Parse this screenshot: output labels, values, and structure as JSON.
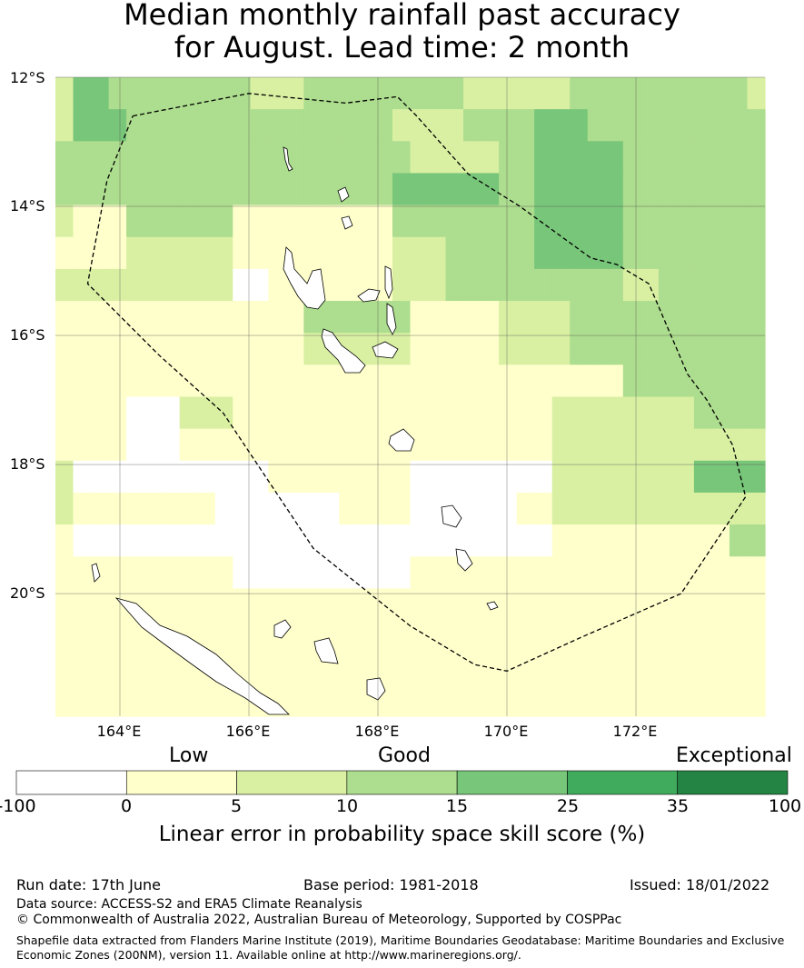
{
  "title_line1": "Median monthly rainfall past accuracy",
  "title_line2": "for August. Lead time: 2 month",
  "map": {
    "lat_labels": [
      "12°S",
      "14°S",
      "16°S",
      "18°S",
      "20°S"
    ],
    "lon_labels": [
      "164°E",
      "166°E",
      "168°E",
      "170°E",
      "172°E"
    ],
    "lon_range": [
      163.0,
      174.0
    ],
    "lat_range": [
      -21.9,
      -12.0
    ],
    "cell_size_deg": 0.833,
    "grid": [
      [
        2,
        4,
        4,
        3,
        3,
        3,
        3,
        3,
        3,
        3,
        3,
        2,
        2,
        2,
        3,
        3,
        3,
        3,
        3,
        3,
        3,
        3,
        3,
        2,
        2,
        2,
        2,
        2,
        2,
        3,
        3,
        3,
        3,
        3,
        3,
        3,
        3,
        3,
        3,
        2
      ],
      [
        2,
        4,
        4,
        4,
        3,
        3,
        3,
        3,
        3,
        3,
        3,
        3,
        3,
        3,
        3,
        3,
        3,
        3,
        3,
        2,
        2,
        2,
        2,
        3,
        3,
        3,
        3,
        4,
        4,
        4,
        3,
        3,
        3,
        3,
        3,
        3,
        3,
        3,
        3,
        3
      ],
      [
        3,
        3,
        3,
        3,
        3,
        3,
        3,
        3,
        3,
        3,
        3,
        3,
        3,
        3,
        3,
        3,
        3,
        3,
        3,
        3,
        2,
        2,
        2,
        2,
        2,
        3,
        3,
        4,
        4,
        4,
        4,
        4,
        3,
        3,
        3,
        3,
        3,
        3,
        3,
        3
      ],
      [
        3,
        3,
        3,
        3,
        3,
        3,
        3,
        3,
        3,
        3,
        3,
        3,
        3,
        3,
        3,
        3,
        3,
        3,
        3,
        4,
        4,
        4,
        4,
        4,
        4,
        3,
        3,
        4,
        4,
        4,
        4,
        4,
        3,
        3,
        3,
        3,
        3,
        3,
        3,
        3
      ],
      [
        2,
        1,
        1,
        1,
        3,
        3,
        3,
        3,
        3,
        3,
        1,
        1,
        1,
        1,
        1,
        1,
        1,
        1,
        1,
        3,
        3,
        3,
        3,
        3,
        3,
        3,
        3,
        4,
        4,
        4,
        4,
        4,
        3,
        3,
        3,
        3,
        3,
        3,
        3,
        3
      ],
      [
        1,
        1,
        1,
        1,
        2,
        2,
        2,
        2,
        2,
        2,
        1,
        1,
        1,
        1,
        1,
        1,
        1,
        1,
        1,
        2,
        2,
        2,
        3,
        3,
        3,
        3,
        3,
        4,
        4,
        4,
        4,
        4,
        3,
        3,
        3,
        3,
        3,
        3,
        3,
        3
      ],
      [
        2,
        2,
        2,
        2,
        2,
        2,
        2,
        2,
        2,
        2,
        0,
        0,
        1,
        1,
        1,
        1,
        1,
        1,
        1,
        2,
        2,
        2,
        3,
        3,
        3,
        3,
        3,
        3,
        3,
        3,
        3,
        3,
        2,
        2,
        3,
        3,
        3,
        3,
        3,
        3
      ],
      [
        1,
        1,
        1,
        1,
        1,
        1,
        1,
        1,
        1,
        1,
        1,
        1,
        1,
        1,
        3,
        3,
        3,
        3,
        3,
        3,
        1,
        1,
        1,
        1,
        1,
        2,
        2,
        2,
        2,
        3,
        3,
        3,
        3,
        3,
        3,
        3,
        3,
        3,
        3,
        3
      ],
      [
        1,
        1,
        1,
        1,
        1,
        1,
        1,
        1,
        1,
        1,
        1,
        1,
        1,
        1,
        2,
        2,
        2,
        2,
        2,
        2,
        1,
        1,
        1,
        1,
        1,
        2,
        2,
        2,
        2,
        3,
        3,
        3,
        3,
        3,
        3,
        3,
        3,
        3,
        3,
        3
      ],
      [
        1,
        1,
        1,
        1,
        1,
        1,
        1,
        1,
        1,
        1,
        1,
        1,
        1,
        1,
        1,
        1,
        1,
        1,
        1,
        1,
        1,
        1,
        1,
        1,
        1,
        1,
        1,
        1,
        1,
        1,
        1,
        1,
        3,
        3,
        3,
        3,
        3,
        3,
        3,
        3
      ],
      [
        1,
        1,
        1,
        1,
        0,
        0,
        0,
        2,
        2,
        2,
        1,
        1,
        1,
        1,
        1,
        1,
        1,
        1,
        1,
        1,
        1,
        1,
        1,
        1,
        1,
        1,
        1,
        1,
        2,
        2,
        2,
        2,
        2,
        2,
        2,
        2,
        3,
        3,
        3,
        3
      ],
      [
        1,
        1,
        1,
        1,
        0,
        0,
        0,
        1,
        1,
        1,
        1,
        1,
        1,
        1,
        1,
        1,
        1,
        1,
        1,
        1,
        1,
        1,
        1,
        1,
        1,
        1,
        1,
        1,
        2,
        2,
        2,
        2,
        2,
        2,
        2,
        2,
        2,
        2,
        2,
        2
      ],
      [
        2,
        0,
        0,
        0,
        0,
        0,
        0,
        0,
        0,
        0,
        0,
        0,
        1,
        1,
        1,
        1,
        1,
        1,
        1,
        1,
        0,
        0,
        0,
        0,
        0,
        0,
        0,
        0,
        2,
        2,
        2,
        2,
        2,
        2,
        2,
        2,
        4,
        4,
        4,
        4
      ],
      [
        2,
        1,
        1,
        1,
        1,
        1,
        1,
        1,
        1,
        0,
        0,
        0,
        0,
        0,
        0,
        0,
        1,
        1,
        1,
        1,
        0,
        0,
        0,
        0,
        0,
        0,
        1,
        1,
        2,
        2,
        2,
        2,
        2,
        2,
        2,
        2,
        2,
        2,
        2,
        2
      ],
      [
        1,
        0,
        0,
        0,
        0,
        0,
        0,
        0,
        0,
        0,
        0,
        0,
        0,
        0,
        0,
        0,
        0,
        0,
        0,
        0,
        0,
        0,
        0,
        0,
        0,
        0,
        0,
        0,
        1,
        1,
        1,
        1,
        1,
        1,
        1,
        1,
        1,
        1,
        3,
        3
      ],
      [
        1,
        1,
        1,
        1,
        1,
        1,
        1,
        1,
        1,
        1,
        0,
        0,
        0,
        0,
        0,
        0,
        0,
        0,
        0,
        0,
        1,
        1,
        1,
        1,
        1,
        1,
        1,
        1,
        1,
        1,
        1,
        1,
        1,
        1,
        1,
        1,
        1,
        1,
        1,
        1
      ],
      [
        1,
        1,
        1,
        1,
        1,
        1,
        1,
        1,
        1,
        1,
        1,
        1,
        1,
        1,
        1,
        1,
        1,
        1,
        1,
        1,
        1,
        1,
        1,
        1,
        1,
        1,
        1,
        1,
        1,
        1,
        1,
        1,
        1,
        1,
        1,
        1,
        1,
        1,
        1,
        1
      ],
      [
        1,
        1,
        1,
        1,
        1,
        1,
        1,
        1,
        1,
        1,
        1,
        1,
        1,
        1,
        1,
        1,
        1,
        1,
        1,
        1,
        1,
        1,
        1,
        1,
        1,
        1,
        1,
        1,
        1,
        1,
        1,
        1,
        1,
        1,
        1,
        1,
        1,
        1,
        1,
        1
      ],
      [
        1,
        1,
        1,
        1,
        1,
        1,
        1,
        1,
        1,
        1,
        1,
        1,
        1,
        1,
        1,
        1,
        1,
        1,
        1,
        1,
        1,
        1,
        1,
        1,
        1,
        1,
        1,
        1,
        1,
        1,
        1,
        1,
        1,
        1,
        1,
        1,
        1,
        1,
        1,
        1
      ],
      [
        1,
        1,
        1,
        1,
        1,
        1,
        1,
        1,
        1,
        1,
        1,
        1,
        1,
        1,
        1,
        1,
        1,
        1,
        1,
        1,
        1,
        1,
        1,
        1,
        1,
        1,
        1,
        1,
        1,
        1,
        1,
        1,
        1,
        1,
        1,
        1,
        1,
        1,
        1,
        1
      ]
    ],
    "eez_boundary": [
      [
        164.2,
        -12.6
      ],
      [
        166.0,
        -12.25
      ],
      [
        167.5,
        -12.4
      ],
      [
        168.3,
        -12.3
      ],
      [
        168.6,
        -12.6
      ],
      [
        169.4,
        -13.5
      ],
      [
        170.2,
        -14.0
      ],
      [
        171.3,
        -14.8
      ],
      [
        171.7,
        -14.9
      ],
      [
        172.2,
        -15.2
      ],
      [
        172.8,
        -16.6
      ],
      [
        173.1,
        -17.0
      ],
      [
        173.5,
        -17.7
      ],
      [
        173.7,
        -18.5
      ],
      [
        172.7,
        -20.0
      ],
      [
        171.1,
        -20.7
      ],
      [
        170.0,
        -21.2
      ],
      [
        169.5,
        -21.1
      ],
      [
        168.5,
        -20.5
      ],
      [
        167.0,
        -19.3
      ],
      [
        166.2,
        -18.1
      ],
      [
        165.6,
        -17.2
      ],
      [
        164.6,
        -16.3
      ],
      [
        163.5,
        -15.2
      ],
      [
        163.8,
        -13.6
      ],
      [
        164.2,
        -12.6
      ]
    ],
    "boundary_color": "#000000"
  },
  "colorbar": {
    "categories": [
      "Low",
      "Good",
      "Exceptional"
    ],
    "ticks": [
      "-100",
      "0",
      "5",
      "10",
      "15",
      "25",
      "35",
      "100"
    ],
    "colors": [
      "#ffffff",
      "#ffffcc",
      "#d9f0a3",
      "#addd8e",
      "#78c679",
      "#41ab5d",
      "#238443"
    ],
    "title": "Linear error in probability space skill score (%)"
  },
  "footer": {
    "run_date": "Run date: 17th June",
    "base_period": "Base period: 1981-2018",
    "issued": "Issued: 18/01/2022",
    "data_source": "Data source: ACCESS-S2 and ERA5 Climate Reanalysis",
    "copyright": "© Commonwealth of Australia 2022, Australian Bureau of Meteorology, Supported by COSPPac",
    "shapefile": "Shapefile data extracted from Flanders Marine Institute (2019), Maritime Boundaries Geodatabase: Maritime Boundaries and Exclusive Economic Zones (200NM), version 11. Available online at http://www.marineregions.org/."
  }
}
